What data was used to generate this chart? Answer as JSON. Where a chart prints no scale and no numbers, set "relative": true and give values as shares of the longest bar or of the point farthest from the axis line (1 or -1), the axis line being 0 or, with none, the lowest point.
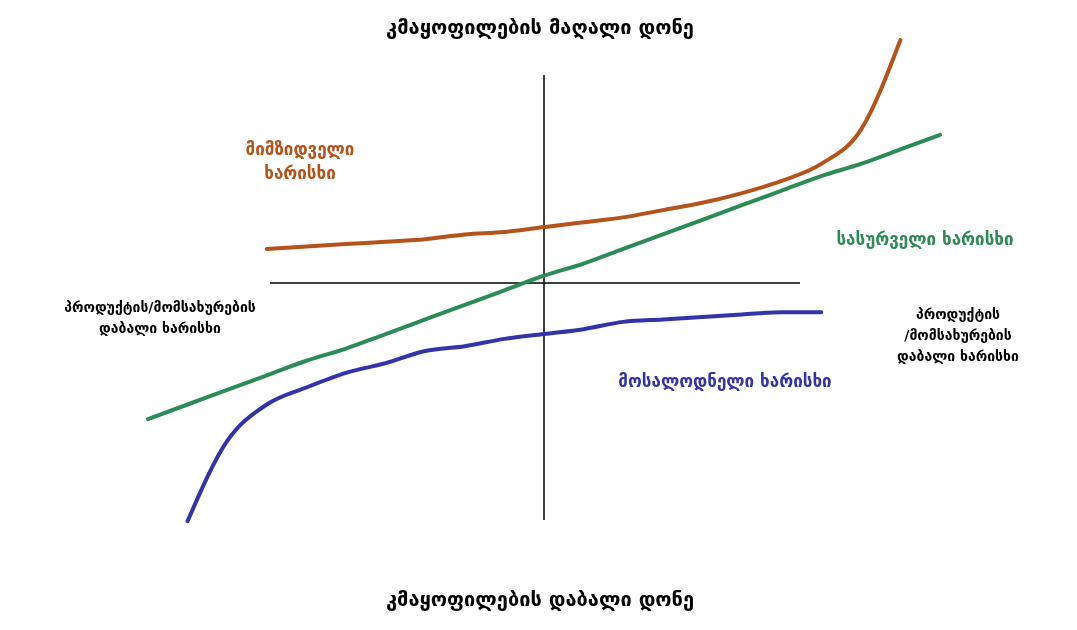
{
  "chart_data": {
    "type": "line",
    "relative": true,
    "line_style": "solid",
    "ref_lines": [
      {
        "axis": "y",
        "value": 0,
        "color": "#000000"
      }
    ],
    "title": "კმაყოფილების მაღალი დონე",
    "categories": [
      null,
      null,
      null,
      null,
      null,
      null,
      null,
      null,
      null,
      null,
      null,
      null,
      null,
      null,
      null,
      null,
      null,
      null,
      null,
      null,
      null
    ],
    "series": [
      {
        "name": "მიმზიდველი ხარისხი",
        "color": "#b5531c",
        "values": [
          null,
          null,
          null,
          0.14,
          0.15,
          0.16,
          0.17,
          0.18,
          0.2,
          0.21,
          0.23,
          0.25,
          0.27,
          0.3,
          0.33,
          0.37,
          0.42,
          0.49,
          0.63,
          1.0,
          null
        ]
      },
      {
        "name": "სასურველი ხარისხი",
        "color": "#2e8b57",
        "values": [
          -0.56,
          -0.5,
          -0.44,
          -0.38,
          -0.32,
          -0.27,
          -0.21,
          -0.15,
          -0.09,
          -0.03,
          0.03,
          0.08,
          0.14,
          0.2,
          0.26,
          0.32,
          0.38,
          0.44,
          0.49,
          0.55,
          0.61
        ]
      },
      {
        "name": "მოსალოდნელი ხარისხი",
        "color": "#3333aa",
        "values": [
          null,
          -0.98,
          -0.65,
          -0.5,
          -0.43,
          -0.37,
          -0.33,
          -0.28,
          -0.26,
          -0.23,
          -0.21,
          -0.19,
          -0.16,
          -0.15,
          -0.14,
          -0.13,
          -0.12,
          -0.12,
          null,
          null,
          null
        ]
      }
    ],
    "annotations": [
      "კმაყოფილების დაბალი დონე",
      "პროდუქტის/მომსახურების\nდაბალი ხარისხი",
      "პროდუქტის\n/მომსახურების\nდაბალი ხარისხი"
    ]
  }
}
